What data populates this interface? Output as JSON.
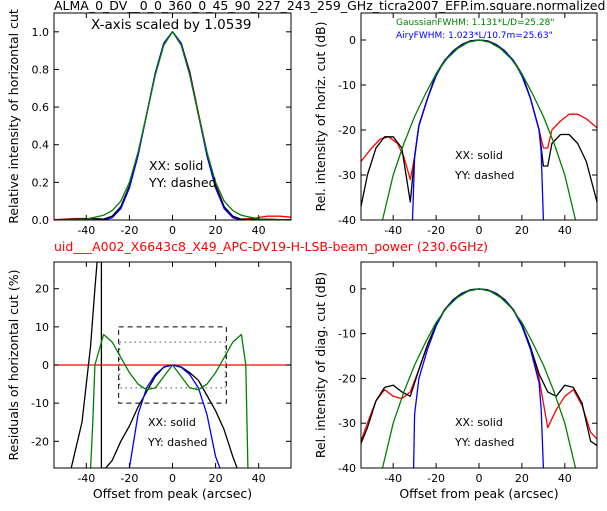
{
  "figure": {
    "title": "ALMA_0_DV__0_0_360_0_45_90_227_243_259_GHz_ticra2007_EFP.im.square.normalized",
    "subtitle": "uid___A002_X6643c8_X49_APC-DV19-H-LSB-beam_power (230.6GHz)",
    "subtitle_color": "#ff0000"
  },
  "chart_data": [
    {
      "type": "line",
      "panel": "top-left",
      "xlabel": "",
      "ylabel": "Relative intensity of horizontal cut",
      "xlim": [
        -55,
        55
      ],
      "ylim": [
        0,
        1.1
      ],
      "xticks": [
        -40,
        -20,
        0,
        20,
        40
      ],
      "yticks": [
        0.0,
        0.2,
        0.4,
        0.6,
        0.8,
        1.0
      ],
      "yticklabels": [
        "0.0",
        "0.2",
        "0.4",
        "0.6",
        "0.8",
        "1.0"
      ],
      "annotation_top": "X-axis scaled by 1.0539",
      "annotations": [
        "XX: solid",
        "YY: dashed"
      ],
      "series": [
        {
          "color": "#ff0000",
          "x": [
            -55,
            -45,
            -38,
            -32,
            -28,
            -24,
            -20,
            -16,
            -12,
            -8,
            -4,
            0,
            4,
            8,
            12,
            16,
            20,
            24,
            28,
            32,
            38,
            44,
            50,
            55
          ],
          "y": [
            0.002,
            0.008,
            0.008,
            0.004,
            0.02,
            0.07,
            0.18,
            0.35,
            0.56,
            0.78,
            0.94,
            1.0,
            0.94,
            0.79,
            0.57,
            0.36,
            0.19,
            0.07,
            0.02,
            0.004,
            0.01,
            0.02,
            0.02,
            0.015
          ]
        },
        {
          "color": "#000000",
          "x": [
            -55,
            -45,
            -38,
            -32,
            -28,
            -24,
            -20,
            -16,
            -12,
            -8,
            -4,
            0,
            4,
            8,
            12,
            16,
            20,
            24,
            28,
            32,
            38,
            44,
            50,
            55
          ],
          "y": [
            0.001,
            0.004,
            0.008,
            0.005,
            0.02,
            0.07,
            0.18,
            0.35,
            0.56,
            0.78,
            0.94,
            1.0,
            0.94,
            0.78,
            0.56,
            0.35,
            0.18,
            0.07,
            0.02,
            0.003,
            0.005,
            0.004,
            0.002,
            0.001
          ]
        },
        {
          "color": "#0000ff",
          "x": [
            -55,
            -32,
            -28,
            -24,
            -20,
            -16,
            -12,
            -8,
            -4,
            0,
            4,
            8,
            12,
            16,
            20,
            24,
            28,
            32,
            55
          ],
          "y": [
            0,
            0,
            0.012,
            0.06,
            0.17,
            0.34,
            0.56,
            0.78,
            0.94,
            1.0,
            0.94,
            0.78,
            0.56,
            0.34,
            0.17,
            0.06,
            0.012,
            0,
            0
          ]
        },
        {
          "color": "#008000",
          "x": [
            -55,
            -45,
            -40,
            -32,
            -28,
            -24,
            -20,
            -16,
            -12,
            -8,
            -4,
            0,
            4,
            8,
            12,
            16,
            20,
            24,
            28,
            32,
            40,
            45,
            55
          ],
          "y": [
            0.001,
            0.003,
            0.005,
            0.025,
            0.05,
            0.1,
            0.2,
            0.36,
            0.56,
            0.77,
            0.93,
            1.0,
            0.93,
            0.77,
            0.56,
            0.36,
            0.2,
            0.1,
            0.05,
            0.025,
            0.005,
            0.003,
            0.001
          ]
        }
      ]
    },
    {
      "type": "line",
      "panel": "top-right",
      "xlabel": "",
      "ylabel": "Rel. intensity of horiz. cut (dB)",
      "xlim": [
        -55,
        55
      ],
      "ylim": [
        -40,
        6
      ],
      "xticks": [
        -40,
        -20,
        0,
        20,
        40
      ],
      "yticks": [
        0,
        -10,
        -20,
        -30,
        -40
      ],
      "legend_text": [
        {
          "text": "GaussianFWHM: 1.131*L/D=25.28\"",
          "color": "#008000"
        },
        {
          "text": "AiryFWHM: 1.023*L/10.7m=25.63\"",
          "color": "#0000ff"
        }
      ],
      "annotations": [
        "XX: solid",
        "YY: dashed"
      ],
      "series": [
        {
          "color": "#ff0000",
          "x": [
            -55,
            -50,
            -46,
            -42,
            -38,
            -35,
            -32,
            -30,
            -28,
            -24,
            -20,
            -16,
            -12,
            -8,
            -4,
            0,
            4,
            8,
            12,
            16,
            20,
            24,
            28,
            30,
            32,
            34,
            38,
            42,
            46,
            50,
            55
          ],
          "y": [
            -27,
            -24,
            -22,
            -21.5,
            -23,
            -26,
            -31,
            -26,
            -19,
            -13,
            -7.5,
            -4.5,
            -2.4,
            -1,
            -0.2,
            0,
            -0.2,
            -1,
            -2.4,
            -4.5,
            -7.5,
            -13,
            -20,
            -24,
            -24,
            -20,
            -18,
            -16.5,
            -16.5,
            -17.5,
            -19.5
          ]
        },
        {
          "color": "#000000",
          "x": [
            -55,
            -52,
            -48,
            -44,
            -40,
            -36,
            -32,
            -30,
            -28,
            -24,
            -20,
            -16,
            -12,
            -8,
            -4,
            0,
            4,
            8,
            12,
            16,
            20,
            24,
            28,
            30,
            32,
            34,
            38,
            42,
            46,
            50,
            55
          ],
          "y": [
            -37,
            -30,
            -24,
            -21.5,
            -21.5,
            -24,
            -36,
            -26,
            -19,
            -13,
            -7.5,
            -4.5,
            -2.4,
            -1,
            -0.2,
            0,
            -0.2,
            -1,
            -2.4,
            -4.5,
            -7.5,
            -13,
            -20,
            -28,
            -28,
            -23,
            -21,
            -21,
            -23,
            -27,
            -36
          ]
        },
        {
          "color": "#0000ff",
          "x": [
            -31,
            -30,
            -28,
            -24,
            -20,
            -16,
            -12,
            -8,
            -4,
            0,
            4,
            8,
            12,
            16,
            20,
            24,
            28,
            29,
            30
          ],
          "y": [
            -40,
            -26,
            -19,
            -13,
            -8,
            -4.5,
            -2.5,
            -1.1,
            -0.3,
            0,
            -0.3,
            -1.1,
            -2.5,
            -4.5,
            -8,
            -13,
            -20,
            -25,
            -40
          ]
        },
        {
          "color": "#008000",
          "x": [
            -45,
            -40,
            -35,
            -30,
            -25,
            -20,
            -15,
            -10,
            -5,
            0,
            5,
            10,
            15,
            20,
            25,
            30,
            35,
            40,
            45
          ],
          "y": [
            -40,
            -30,
            -23,
            -17,
            -12,
            -7.5,
            -4.2,
            -1.9,
            -0.5,
            0,
            -0.5,
            -1.9,
            -4.2,
            -7.5,
            -12,
            -17,
            -23,
            -30,
            -40
          ]
        }
      ]
    },
    {
      "type": "line",
      "panel": "bottom-left",
      "xlabel": "Offset from peak (arcsec)",
      "ylabel": "Residuals of horizontal cut (%)",
      "xlim": [
        -55,
        55
      ],
      "ylim": [
        -27,
        27
      ],
      "xticks": [
        -40,
        -20,
        0,
        20,
        40
      ],
      "yticks": [
        -20,
        -10,
        0,
        10,
        20
      ],
      "annotations": [
        "XX: solid",
        "YY: dashed"
      ],
      "series": [
        {
          "color": "#ff0000",
          "x": [
            -55,
            55
          ],
          "y": [
            0,
            0
          ]
        },
        {
          "color": "#000000",
          "x": [
            -47,
            -42,
            -38,
            -36,
            -35,
            -33,
            -33,
            -33,
            -31,
            -28,
            -24,
            -20,
            -16,
            -12,
            -8,
            -4,
            0,
            4,
            8,
            12,
            16,
            20,
            24,
            28,
            30
          ],
          "y": [
            -27,
            -15,
            5,
            20,
            27,
            27,
            -27,
            -27,
            -27,
            -25,
            -20,
            -16,
            -11,
            -7,
            -3,
            -0.5,
            0,
            -0.5,
            -2,
            -4,
            -8,
            -12,
            -17,
            -24,
            -27
          ]
        },
        {
          "color": "#0000ff",
          "x": [
            -20,
            -16,
            -12,
            -8,
            -4,
            0,
            4,
            8,
            12,
            16,
            20,
            22
          ],
          "y": [
            -27,
            -13,
            -6,
            -2.5,
            -0.6,
            0,
            -0.6,
            -2.5,
            -6,
            -13,
            -24,
            -27
          ]
        },
        {
          "color": "#008000",
          "x": [
            -38,
            -37,
            -36,
            -32,
            -28,
            -24,
            -20,
            -16,
            -12,
            -8,
            -4,
            0,
            4,
            8,
            12,
            16,
            20,
            24,
            28,
            32,
            34,
            35
          ],
          "y": [
            -27,
            -15,
            0,
            8,
            6,
            2,
            -2,
            -5,
            -6.5,
            -6,
            -3,
            0,
            -3,
            -6,
            -6.5,
            -5,
            -2,
            2,
            6,
            8,
            0,
            -27
          ]
        }
      ]
    },
    {
      "type": "line",
      "panel": "bottom-right",
      "xlabel": "Offset from peak (arcsec)",
      "ylabel": "Rel. intensity of diag. cut (dB)",
      "xlim": [
        -55,
        55
      ],
      "ylim": [
        -40,
        6
      ],
      "xticks": [
        -40,
        -20,
        0,
        20,
        40
      ],
      "yticks": [
        0,
        -10,
        -20,
        -30,
        -40
      ],
      "annotations": [
        "XX: solid",
        "YY: dashed"
      ],
      "series": [
        {
          "color": "#ff0000",
          "x": [
            -55,
            -52,
            -48,
            -44,
            -40,
            -36,
            -32,
            -28,
            -24,
            -20,
            -16,
            -12,
            -8,
            -4,
            0,
            4,
            8,
            12,
            16,
            20,
            24,
            28,
            32,
            36,
            40,
            44,
            48,
            52,
            55
          ],
          "y": [
            -34,
            -30,
            -25,
            -22.5,
            -24,
            -24.5,
            -23,
            -18,
            -12.5,
            -8,
            -4.6,
            -2.4,
            -1,
            -0.2,
            0,
            -0.2,
            -1,
            -2.4,
            -4.6,
            -8,
            -13,
            -20,
            -31,
            -27,
            -24,
            -22.5,
            -26,
            -32,
            -33.5
          ]
        },
        {
          "color": "#000000",
          "x": [
            -55,
            -52,
            -48,
            -44,
            -40,
            -36,
            -32,
            -28,
            -24,
            -20,
            -16,
            -12,
            -8,
            -4,
            0,
            4,
            8,
            12,
            16,
            20,
            24,
            28,
            32,
            36,
            40,
            44,
            48,
            52,
            55
          ],
          "y": [
            -34.5,
            -31,
            -25,
            -22,
            -21.5,
            -23,
            -24,
            -18,
            -12.5,
            -8,
            -4.6,
            -2.4,
            -1,
            -0.2,
            0,
            -0.2,
            -1,
            -2.4,
            -4.6,
            -8,
            -13,
            -19,
            -23,
            -24,
            -21.5,
            -22,
            -25.5,
            -34,
            -35
          ]
        },
        {
          "color": "#0000ff",
          "x": [
            -30.5,
            -30,
            -28,
            -24,
            -20,
            -16,
            -12,
            -8,
            -4,
            0,
            4,
            8,
            12,
            16,
            20,
            24,
            28,
            29,
            30
          ],
          "y": [
            -40,
            -28,
            -20,
            -13.5,
            -8.3,
            -4.7,
            -2.5,
            -1.1,
            -0.3,
            0,
            -0.3,
            -1.1,
            -2.5,
            -4.7,
            -8.3,
            -13.5,
            -21,
            -27,
            -40
          ]
        },
        {
          "color": "#008000",
          "x": [
            -45,
            -40,
            -35,
            -30,
            -25,
            -20,
            -15,
            -10,
            -5,
            0,
            5,
            10,
            15,
            20,
            25,
            30,
            35,
            40,
            45
          ],
          "y": [
            -40,
            -30,
            -23,
            -17,
            -12,
            -7.5,
            -4.2,
            -1.9,
            -0.5,
            0,
            -0.5,
            -1.9,
            -4.2,
            -7.5,
            -12,
            -17,
            -23,
            -30,
            -40
          ]
        }
      ]
    }
  ]
}
